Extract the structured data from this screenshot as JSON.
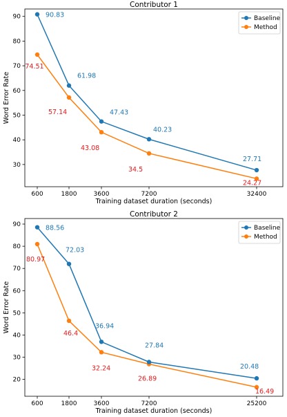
{
  "chart_data": [
    {
      "type": "line",
      "title": "Contributor 1",
      "xlabel": "Training dataset duration (seconds)",
      "ylabel": "Word Error Rate",
      "x_scale": "categorical-positions",
      "x": [
        "600",
        "1800",
        "3600",
        "7200",
        "32400"
      ],
      "yticks": [
        30,
        40,
        50,
        60,
        70,
        80,
        90
      ],
      "ylim": [
        21,
        93
      ],
      "grid": false,
      "legend_position": "top-right",
      "series": [
        {
          "name": "Baseline",
          "color": "#1f77b4",
          "values": [
            90.83,
            61.98,
            47.43,
            40.23,
            27.71
          ],
          "labels": [
            "90.83",
            "61.98",
            "47.43",
            "40.23",
            "27.71"
          ]
        },
        {
          "name": "Method",
          "color": "#ff7f0e",
          "label_color": "#e41a1c",
          "values": [
            74.51,
            57.14,
            43.08,
            34.5,
            24.27
          ],
          "labels": [
            "74.51",
            "57.14",
            "43.08",
            "34.5",
            "24.27"
          ]
        }
      ]
    },
    {
      "type": "line",
      "title": "Contributor 2",
      "xlabel": "Training dataset duration (seconds)",
      "ylabel": "Word Error Rate",
      "x_scale": "categorical-positions",
      "x": [
        "600",
        "1800",
        "3600",
        "7200",
        "25200"
      ],
      "yticks": [
        20,
        30,
        40,
        50,
        60,
        70,
        80,
        90
      ],
      "ylim": [
        12.4,
        92.5
      ],
      "grid": false,
      "legend_position": "top-right",
      "series": [
        {
          "name": "Baseline",
          "color": "#1f77b4",
          "values": [
            88.56,
            72.03,
            36.94,
            27.84,
            20.48
          ],
          "labels": [
            "88.56",
            "72.03",
            "36.94",
            "27.84",
            "20.48"
          ]
        },
        {
          "name": "Method",
          "color": "#ff7f0e",
          "label_color": "#e41a1c",
          "values": [
            80.97,
            46.4,
            32.24,
            26.89,
            16.49
          ],
          "labels": [
            "80.97",
            "46.4",
            "32.24",
            "26.89",
            "16.49"
          ]
        }
      ]
    }
  ]
}
